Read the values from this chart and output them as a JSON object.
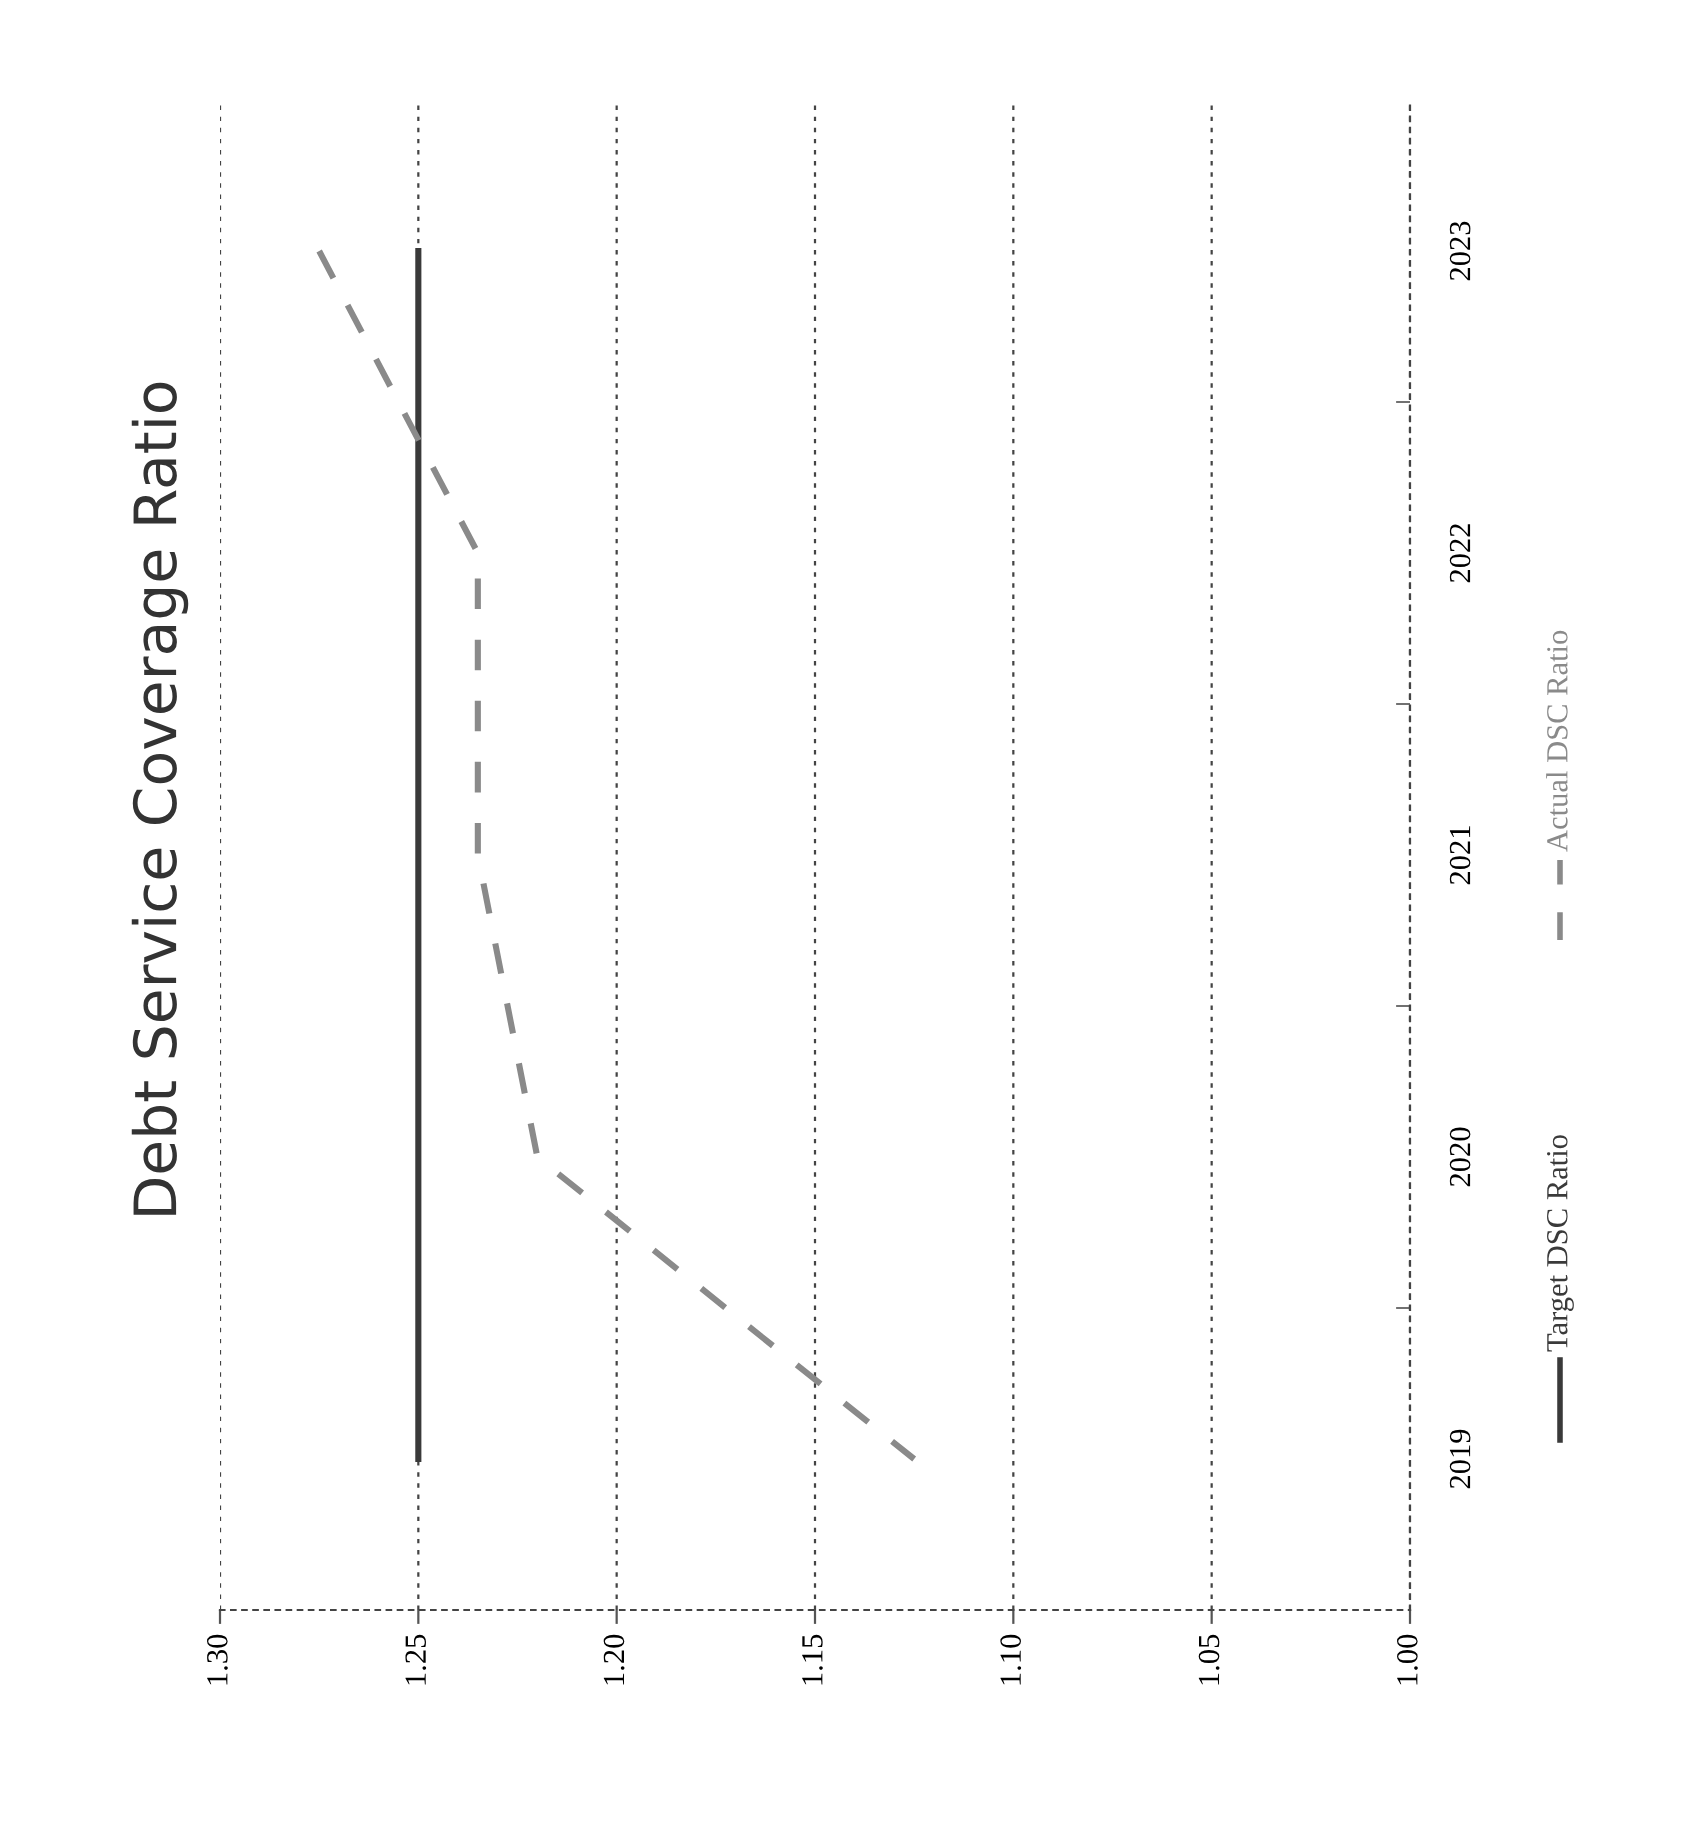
{
  "chart_data": {
    "type": "line",
    "title": "Debt Service Coverage Ratio",
    "orientation": "horizontal",
    "categories": [
      "2023",
      "2022",
      "2021",
      "2020",
      "2019"
    ],
    "series": [
      {
        "name": "Target DSC Ratio",
        "color": "#3a3a3a",
        "line_style": "solid",
        "values": [
          1.25,
          1.25,
          1.25,
          1.25,
          1.25
        ]
      },
      {
        "name": "Actual DSC Ratio",
        "color": "#8a8a8a",
        "line_style": "dashed",
        "values": [
          1.275,
          1.235,
          1.235,
          1.22,
          1.125
        ]
      }
    ],
    "xlim": [
      1.3,
      1.0
    ],
    "xticks": [
      {
        "value": 1.3,
        "label": "1.30"
      },
      {
        "value": 1.25,
        "label": "1.25"
      },
      {
        "value": 1.2,
        "label": "1.20"
      },
      {
        "value": 1.15,
        "label": "1.15"
      },
      {
        "value": 1.1,
        "label": "1.10"
      },
      {
        "value": 1.05,
        "label": "1.05"
      },
      {
        "value": 1.0,
        "label": "1.00"
      }
    ],
    "grid": "x",
    "legend": "right",
    "marker": "none"
  }
}
